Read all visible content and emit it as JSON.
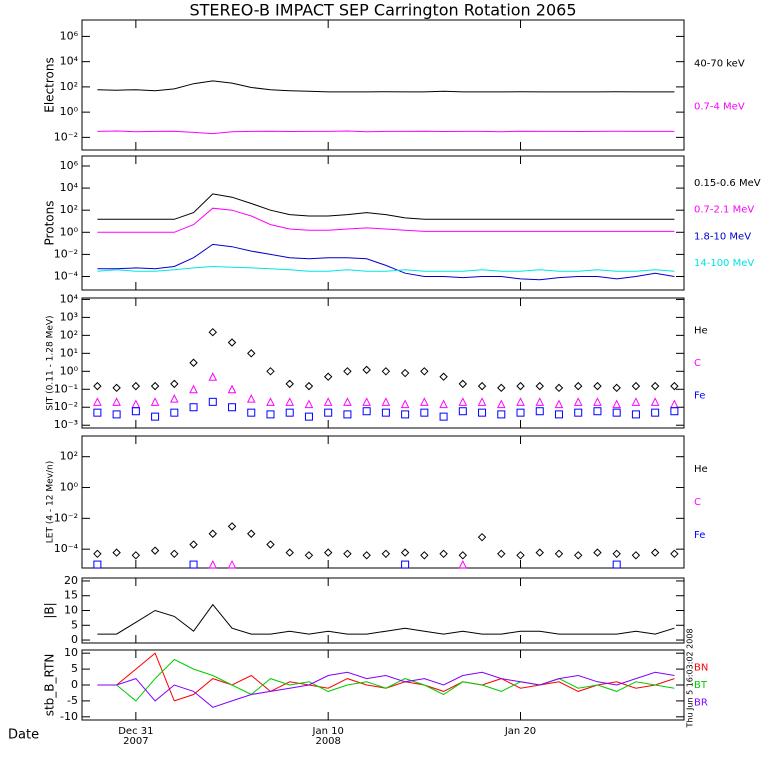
{
  "title": "STEREO-B IMPACT SEP Carrington Rotation 2065",
  "date_label": "Date",
  "timestamp": "Thu Jun 5 16:03:02 2008",
  "x_axis": {
    "x": [
      -2,
      -1,
      0,
      1,
      2,
      3,
      4,
      5,
      6,
      7,
      8,
      9,
      10,
      11,
      12,
      13,
      14,
      15,
      16,
      17,
      18,
      19,
      20,
      21,
      22,
      23,
      24,
      25,
      26,
      27,
      28
    ],
    "xlim": [
      -2.8,
      28.5
    ],
    "xticks": [
      {
        "value": 0,
        "label": "Dec 31",
        "year": "2007"
      },
      {
        "value": 10,
        "label": "Jan 10",
        "year": "2008"
      },
      {
        "value": 20,
        "label": "Jan 20"
      }
    ]
  },
  "chart_data": [
    {
      "type": "line",
      "ylabel": "Electrons",
      "log_scale": true,
      "ylim": [
        0.001,
        20000000
      ],
      "yticks": [
        {
          "value": 0.01,
          "label": "10⁻²"
        },
        {
          "value": 1,
          "label": "10⁰"
        },
        {
          "value": 100,
          "label": "10²"
        },
        {
          "value": 10000,
          "label": "10⁴"
        },
        {
          "value": 1000000,
          "label": "10⁶"
        }
      ],
      "series": [
        {
          "name": "40-70 keV",
          "color": "#000000",
          "values": [
            60,
            55,
            60,
            50,
            70,
            180,
            300,
            200,
            90,
            60,
            50,
            45,
            40,
            40,
            40,
            42,
            40,
            40,
            45,
            40,
            40,
            40,
            42,
            40,
            40,
            40,
            40,
            42,
            40,
            40,
            40
          ]
        },
        {
          "name": "0.7-4 MeV",
          "color": "#ff00ff",
          "values": [
            0.03,
            0.032,
            0.028,
            0.03,
            0.031,
            0.025,
            0.02,
            0.028,
            0.03,
            0.031,
            0.029,
            0.03,
            0.03,
            0.032,
            0.028,
            0.03,
            0.03,
            0.031,
            0.029,
            0.03,
            0.03,
            0.028,
            0.031,
            0.03,
            0.03,
            0.029,
            0.03,
            0.031,
            0.03,
            0.03,
            0.03
          ]
        }
      ]
    },
    {
      "type": "line",
      "ylabel": "Protons",
      "log_scale": true,
      "ylim": [
        6e-06,
        8000000
      ],
      "yticks": [
        {
          "value": 0.0001,
          "label": "10⁻⁴"
        },
        {
          "value": 0.01,
          "label": "10⁻²"
        },
        {
          "value": 1,
          "label": "10⁰"
        },
        {
          "value": 100,
          "label": "10²"
        },
        {
          "value": 10000,
          "label": "10⁴"
        },
        {
          "value": 1000000,
          "label": "10⁶"
        }
      ],
      "series": [
        {
          "name": "0.15-0.6 MeV",
          "color": "#000000",
          "values": [
            15,
            15,
            15,
            15,
            15,
            60,
            3000,
            1500,
            400,
            100,
            40,
            30,
            30,
            40,
            60,
            40,
            20,
            15,
            15,
            15,
            15,
            15,
            15,
            15,
            15,
            15,
            15,
            15,
            15,
            15,
            15
          ]
        },
        {
          "name": "0.7-2.1 MeV",
          "color": "#ff00ff",
          "values": [
            1,
            1,
            1,
            1,
            1,
            5,
            150,
            100,
            30,
            5,
            2,
            1.5,
            1.5,
            2,
            2.5,
            2,
            1.5,
            1.2,
            1.2,
            1.2,
            1.2,
            1.2,
            1.2,
            1.2,
            1.2,
            1.2,
            1.2,
            1.2,
            1.2,
            1.2,
            1.2
          ]
        },
        {
          "name": "1.8-10 MeV",
          "color": "#0000cc",
          "values": [
            0.0005,
            0.0005,
            0.0006,
            0.0005,
            0.0008,
            0.005,
            0.08,
            0.05,
            0.02,
            0.01,
            0.005,
            0.004,
            0.005,
            0.005,
            0.004,
            0.001,
            0.0002,
            0.0001,
            0.0001,
            8e-05,
            0.0001,
            0.0001,
            6e-05,
            5e-05,
            8e-05,
            0.0001,
            0.0001,
            6e-05,
            0.0001,
            0.0002,
            0.0001
          ]
        },
        {
          "name": "14-100 MeV",
          "color": "#00e5e5",
          "values": [
            0.0003,
            0.0004,
            0.0003,
            0.0003,
            0.0004,
            0.0006,
            0.0008,
            0.0007,
            0.0006,
            0.0005,
            0.0004,
            0.0003,
            0.0003,
            0.0004,
            0.0003,
            0.0003,
            0.0004,
            0.0003,
            0.0003,
            0.0003,
            0.0004,
            0.0003,
            0.0003,
            0.0004,
            0.0003,
            0.0003,
            0.0004,
            0.0003,
            0.0003,
            0.0004,
            0.0003
          ]
        }
      ]
    },
    {
      "type": "scatter",
      "ylabel": "SIT (0.11 - 1.28 MeV)",
      "log_scale": true,
      "ylim": [
        0.0007,
        12000
      ],
      "yticks": [
        {
          "value": 0.001,
          "label": "10⁻³"
        },
        {
          "value": 0.01,
          "label": "10⁻²"
        },
        {
          "value": 0.1,
          "label": "10⁻¹"
        },
        {
          "value": 1,
          "label": "10⁰"
        },
        {
          "value": 10,
          "label": "10¹"
        },
        {
          "value": 100,
          "label": "10²"
        },
        {
          "value": 1000,
          "label": "10³"
        },
        {
          "value": 10000,
          "label": "10⁴"
        }
      ],
      "series": [
        {
          "name": "He",
          "color": "#000000",
          "marker": "diamond",
          "values": [
            0.15,
            0.12,
            0.15,
            0.15,
            0.2,
            3,
            150,
            40,
            10,
            1,
            0.2,
            0.15,
            0.5,
            1,
            1.2,
            1,
            0.8,
            1,
            0.5,
            0.2,
            0.15,
            0.12,
            0.15,
            0.15,
            0.12,
            0.15,
            0.15,
            0.12,
            0.15,
            0.15,
            0.15
          ]
        },
        {
          "name": "C",
          "color": "#ff00ff",
          "marker": "triangle",
          "values": [
            0.02,
            0.02,
            0.015,
            0.02,
            0.03,
            0.1,
            0.5,
            0.1,
            0.03,
            0.02,
            0.02,
            0.015,
            0.02,
            0.02,
            0.02,
            0.02,
            0.015,
            0.02,
            0.015,
            0.02,
            0.02,
            0.015,
            0.02,
            0.02,
            0.015,
            0.02,
            0.02,
            0.015,
            0.02,
            0.02,
            0.015
          ]
        },
        {
          "name": "Fe",
          "color": "#0000ff",
          "marker": "square",
          "values": [
            0.005,
            0.004,
            0.006,
            0.003,
            0.005,
            0.01,
            0.02,
            0.01,
            0.005,
            0.004,
            0.005,
            0.003,
            0.005,
            0.004,
            0.006,
            0.005,
            0.004,
            0.005,
            0.003,
            0.006,
            0.005,
            0.004,
            0.005,
            0.006,
            0.004,
            0.005,
            0.006,
            0.005,
            0.004,
            0.005,
            0.006
          ]
        }
      ]
    },
    {
      "type": "scatter",
      "ylabel": "LET (4 - 12 Mev/n)",
      "log_scale": true,
      "ylim": [
        6e-06,
        2200
      ],
      "yticks": [
        {
          "value": 0.0001,
          "label": "10⁻⁴"
        },
        {
          "value": 0.01,
          "label": "10⁻²"
        },
        {
          "value": 1,
          "label": "10⁰"
        },
        {
          "value": 100,
          "label": "10²"
        }
      ],
      "series": [
        {
          "name": "He",
          "color": "#000000",
          "marker": "diamond",
          "values": [
            5e-05,
            6e-05,
            4e-05,
            8e-05,
            5e-05,
            0.0002,
            0.001,
            0.003,
            0.001,
            0.0002,
            6e-05,
            4e-05,
            6e-05,
            5e-05,
            4e-05,
            5e-05,
            6e-05,
            4e-05,
            5e-05,
            4e-05,
            0.0006,
            5e-05,
            4e-05,
            6e-05,
            5e-05,
            4e-05,
            6e-05,
            5e-05,
            4e-05,
            6e-05,
            5e-05
          ]
        },
        {
          "name": "C",
          "color": "#ff00ff",
          "marker": "triangle",
          "values": [
            null,
            null,
            null,
            null,
            null,
            null,
            1e-05,
            1e-05,
            null,
            null,
            null,
            null,
            null,
            null,
            null,
            null,
            null,
            null,
            null,
            1e-05,
            null,
            null,
            null,
            null,
            null,
            null,
            null,
            null,
            null,
            null,
            null
          ]
        },
        {
          "name": "Fe",
          "color": "#0000ff",
          "marker": "square",
          "values": [
            1e-05,
            null,
            null,
            null,
            null,
            1e-05,
            null,
            null,
            null,
            null,
            null,
            null,
            null,
            null,
            null,
            null,
            1e-05,
            null,
            null,
            null,
            null,
            null,
            null,
            null,
            null,
            null,
            null,
            1e-05,
            null,
            null,
            null
          ]
        }
      ]
    },
    {
      "type": "line",
      "ylabel": "|B|",
      "log_scale": false,
      "ylim": [
        -1,
        21
      ],
      "yticks": [
        0,
        5,
        10,
        15,
        20
      ],
      "series": [
        {
          "color": "#000000",
          "values": [
            2,
            2,
            6,
            10,
            8,
            3,
            12,
            4,
            2,
            2,
            3,
            2,
            3,
            2,
            2,
            3,
            4,
            3,
            2,
            3,
            2,
            2,
            3,
            3,
            2,
            2,
            2,
            2,
            3,
            2,
            4
          ]
        }
      ]
    },
    {
      "type": "line",
      "ylabel": "stb_B_RTN",
      "log_scale": false,
      "ylim": [
        -11,
        11
      ],
      "yticks": [
        -10,
        -5,
        0,
        5,
        10
      ],
      "series": [
        {
          "name": "BN",
          "color": "#ff0000",
          "values": [
            0,
            0,
            5,
            10,
            -5,
            -3,
            2,
            0,
            3,
            -2,
            1,
            0,
            -1,
            2,
            0,
            -1,
            1,
            0,
            -2,
            1,
            0,
            2,
            -1,
            0,
            1,
            -2,
            0,
            1,
            -1,
            0,
            2
          ]
        },
        {
          "name": "BT",
          "color": "#00cc00",
          "values": [
            0,
            0,
            -5,
            2,
            8,
            5,
            3,
            0,
            -3,
            2,
            0,
            1,
            -2,
            0,
            1,
            -1,
            2,
            0,
            -3,
            1,
            0,
            -2,
            1,
            0,
            2,
            -1,
            0,
            -2,
            1,
            0,
            -1
          ]
        },
        {
          "name": "BR",
          "color": "#8000ff",
          "values": [
            0,
            0,
            2,
            -5,
            0,
            -2,
            -7,
            -5,
            -3,
            -2,
            -1,
            0,
            3,
            4,
            2,
            3,
            1,
            2,
            0,
            3,
            4,
            2,
            1,
            0,
            2,
            3,
            1,
            0,
            2,
            4,
            3
          ]
        }
      ]
    }
  ]
}
